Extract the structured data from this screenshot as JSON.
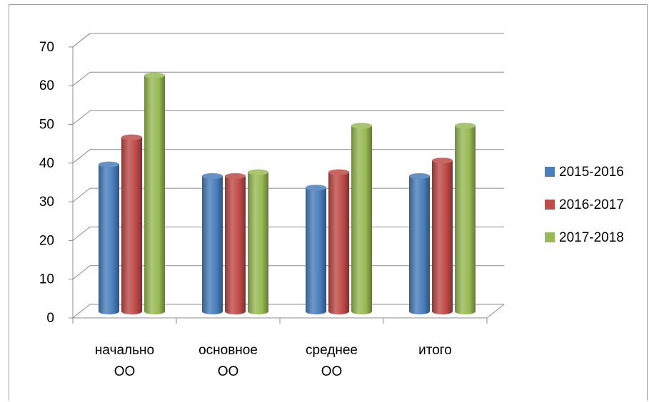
{
  "chart_data": {
    "type": "bar",
    "style": "3d-cylinder",
    "categories": [
      [
        "начально",
        "ОО"
      ],
      [
        "основное",
        "ОО"
      ],
      [
        "среднее",
        "ОО"
      ],
      [
        "итого"
      ]
    ],
    "series": [
      {
        "name": "2015-2016",
        "color": "#4a7ebb",
        "values": [
          38,
          35,
          32,
          35
        ]
      },
      {
        "name": "2016-2017",
        "color": "#be4b48",
        "values": [
          45,
          35,
          36,
          39
        ]
      },
      {
        "name": "2017-2018",
        "color": "#98b954",
        "values": [
          61,
          36,
          48,
          48
        ]
      }
    ],
    "yticks": [
      0,
      10,
      20,
      30,
      40,
      50,
      60,
      70
    ],
    "ylim": [
      0,
      70
    ],
    "grid": true,
    "legend": "right",
    "title": "",
    "xlabel": "",
    "ylabel": ""
  }
}
